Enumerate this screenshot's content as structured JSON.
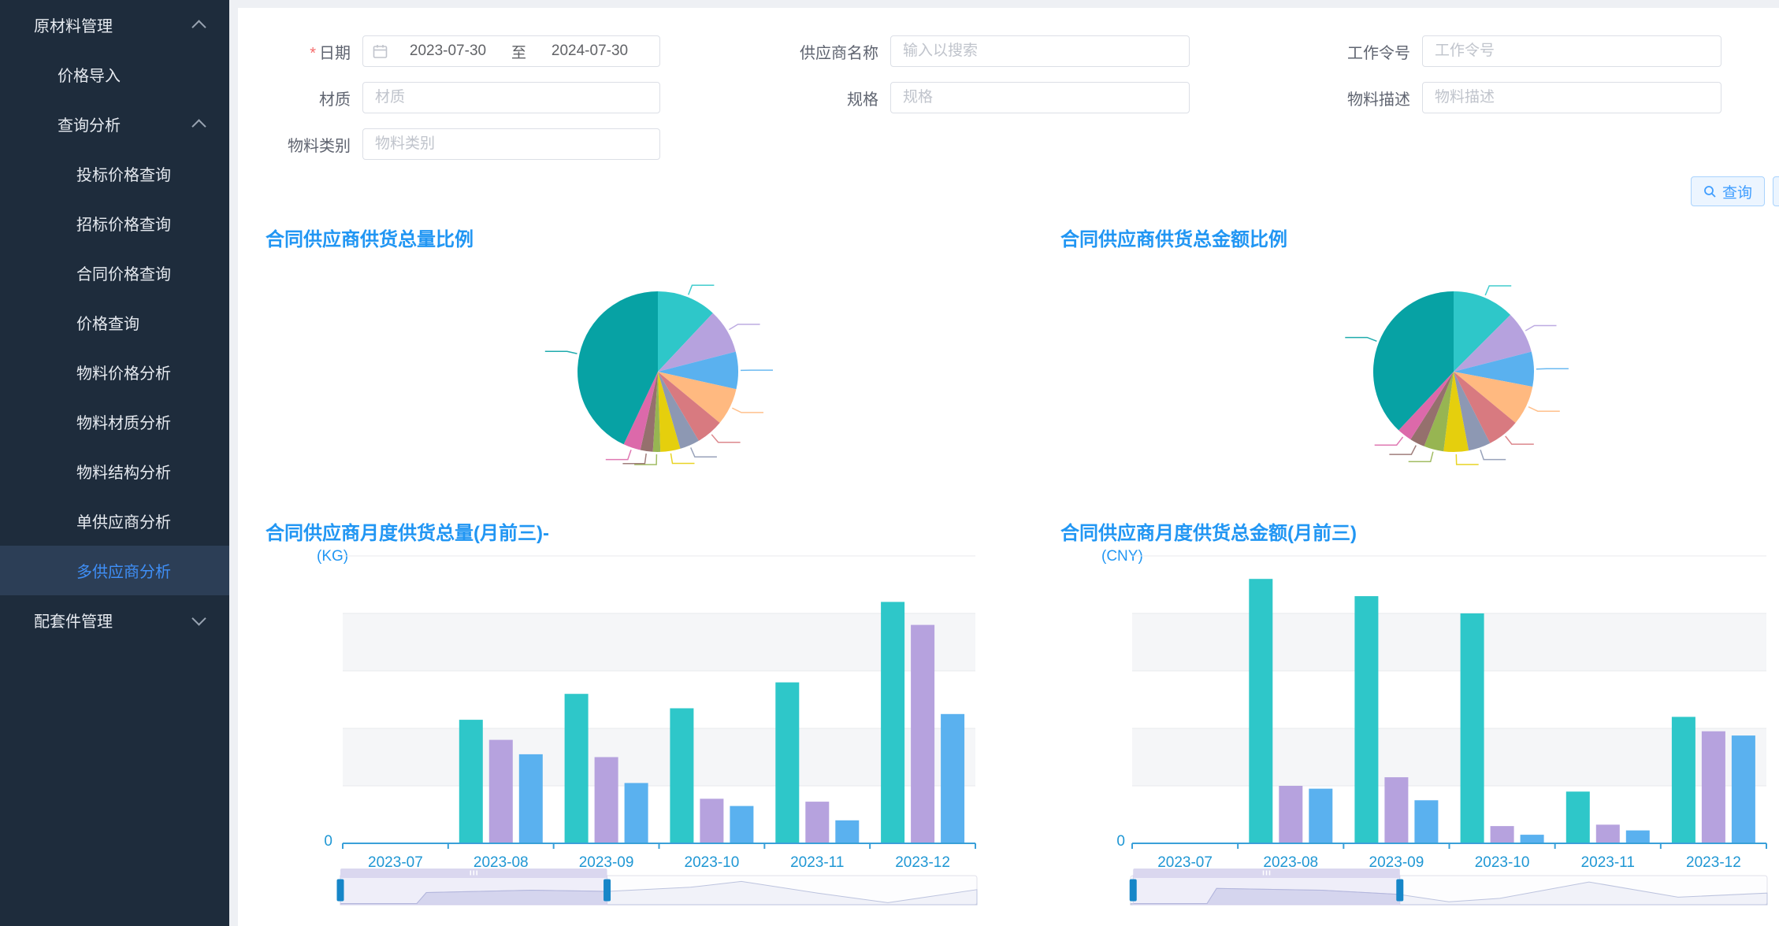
{
  "app": {
    "accent": "#2196f3"
  },
  "sidebar": {
    "bg": "#1e2c3c",
    "active_bg": "#2c3e56",
    "active_color": "#3f8ff7",
    "items": [
      {
        "label": "原材料管理",
        "level": 1,
        "chevron": "up"
      },
      {
        "label": "价格导入",
        "level": 2
      },
      {
        "label": "查询分析",
        "level": 2,
        "chevron": "up"
      },
      {
        "label": "投标价格查询",
        "level": 3
      },
      {
        "label": "招标价格查询",
        "level": 3
      },
      {
        "label": "合同价格查询",
        "level": 3
      },
      {
        "label": "价格查询",
        "level": 3
      },
      {
        "label": "物料价格分析",
        "level": 3
      },
      {
        "label": "物料材质分析",
        "level": 3
      },
      {
        "label": "物料结构分析",
        "level": 3
      },
      {
        "label": "单供应商分析",
        "level": 3
      },
      {
        "label": "多供应商分析",
        "level": 3,
        "active": true
      },
      {
        "label": "配套件管理",
        "level": 1,
        "chevron": "down"
      }
    ]
  },
  "form": {
    "date": {
      "label": "日期",
      "required_mark": "*",
      "start": "2023-07-30",
      "separator": "至",
      "end": "2024-07-30"
    },
    "supplier": {
      "label": "供应商名称",
      "placeholder": "输入以搜索",
      "value": ""
    },
    "work_order": {
      "label": "工作令号",
      "placeholder": "工作令号",
      "value": ""
    },
    "material": {
      "label": "材质",
      "placeholder": "材质",
      "value": ""
    },
    "spec": {
      "label": "规格",
      "placeholder": "规格",
      "value": ""
    },
    "material_desc": {
      "label": "物料描述",
      "placeholder": "物料描述",
      "value": ""
    },
    "material_category": {
      "label": "物料类别",
      "placeholder": "物料类别",
      "value": ""
    }
  },
  "actions": {
    "query_label": "查询"
  },
  "chart_data": [
    {
      "type": "pie",
      "title": "合同供应商供货总量比例",
      "labels_visible": false,
      "note": "leader lines rendered, label text is white/invisible in source",
      "slices": [
        {
          "color": "#2ec7c9",
          "percent": 12
        },
        {
          "color": "#b6a2de",
          "percent": 9
        },
        {
          "color": "#5ab1ef",
          "percent": 7.5
        },
        {
          "color": "#ffb980",
          "percent": 7.5
        },
        {
          "color": "#d87a80",
          "percent": 5.5
        },
        {
          "color": "#8d98b3",
          "percent": 4
        },
        {
          "color": "#e5cf0d",
          "percent": 4
        },
        {
          "color": "#97b552",
          "percent": 1.5
        },
        {
          "color": "#95706d",
          "percent": 2.5
        },
        {
          "color": "#dc69aa",
          "percent": 3.5
        },
        {
          "color": "#07a2a4",
          "percent": 43
        }
      ]
    },
    {
      "type": "pie",
      "title": "合同供应商供货总金额比例",
      "labels_visible": false,
      "slices": [
        {
          "color": "#2ec7c9",
          "percent": 12.5
        },
        {
          "color": "#b6a2de",
          "percent": 8.5
        },
        {
          "color": "#5ab1ef",
          "percent": 7
        },
        {
          "color": "#ffb980",
          "percent": 8
        },
        {
          "color": "#d87a80",
          "percent": 6.5
        },
        {
          "color": "#8d98b3",
          "percent": 4.5
        },
        {
          "color": "#e5cf0d",
          "percent": 5
        },
        {
          "color": "#97b552",
          "percent": 4
        },
        {
          "color": "#95706d",
          "percent": 3
        },
        {
          "color": "#dc69aa",
          "percent": 3
        },
        {
          "color": "#07a2a4",
          "percent": 38
        }
      ]
    },
    {
      "type": "bar",
      "title": "合同供应商月度供货总量(月前三)-",
      "ylabel": "(KG)",
      "y_min_label": "0",
      "values_unit": "percent of y-axis max (numeric axis labels not visible in source)",
      "categories": [
        "2023-07",
        "2023-08",
        "2023-09",
        "2023-10",
        "2023-11",
        "2023-12"
      ],
      "series": [
        {
          "name": "",
          "color": "#2ec7c9",
          "values": [
            0,
            43,
            52,
            47,
            56,
            84
          ]
        },
        {
          "name": "",
          "color": "#b6a2de",
          "values": [
            0,
            36,
            30,
            15.5,
            14.5,
            76
          ]
        },
        {
          "name": "",
          "color": "#5ab1ef",
          "values": [
            0,
            31,
            21,
            13,
            8,
            45
          ]
        }
      ],
      "datazoom": {
        "start": 0.0,
        "end": 0.419,
        "shadow_profile": [
          [
            0,
            0.04
          ],
          [
            0.12,
            0.04
          ],
          [
            0.135,
            0.42
          ],
          [
            0.3,
            0.5
          ],
          [
            0.42,
            0.46
          ],
          [
            0.55,
            0.6
          ],
          [
            0.63,
            0.8
          ],
          [
            0.75,
            0.4
          ],
          [
            0.86,
            0.07
          ],
          [
            1,
            0.52
          ]
        ]
      }
    },
    {
      "type": "bar",
      "title": "合同供应商月度供货总金额(月前三)",
      "ylabel": "(CNY)",
      "y_min_label": "0",
      "values_unit": "percent of y-axis max (numeric axis labels not visible in source)",
      "categories": [
        "2023-07",
        "2023-08",
        "2023-09",
        "2023-10",
        "2023-11",
        "2023-12"
      ],
      "series": [
        {
          "name": "",
          "color": "#2ec7c9",
          "values": [
            0,
            92,
            86,
            80,
            18,
            44
          ]
        },
        {
          "name": "",
          "color": "#b6a2de",
          "values": [
            0,
            20,
            23,
            6,
            6.5,
            39
          ]
        },
        {
          "name": "",
          "color": "#5ab1ef",
          "values": [
            0,
            19,
            15,
            3,
            4.5,
            37.5
          ]
        }
      ],
      "datazoom": {
        "start": 0.004,
        "end": 0.423,
        "shadow_profile": [
          [
            0,
            0.04
          ],
          [
            0.12,
            0.04
          ],
          [
            0.135,
            0.56
          ],
          [
            0.3,
            0.5
          ],
          [
            0.42,
            0.36
          ],
          [
            0.5,
            0.1
          ],
          [
            0.58,
            0.22
          ],
          [
            0.72,
            0.78
          ],
          [
            0.86,
            0.26
          ],
          [
            1,
            0.4
          ]
        ]
      }
    }
  ]
}
